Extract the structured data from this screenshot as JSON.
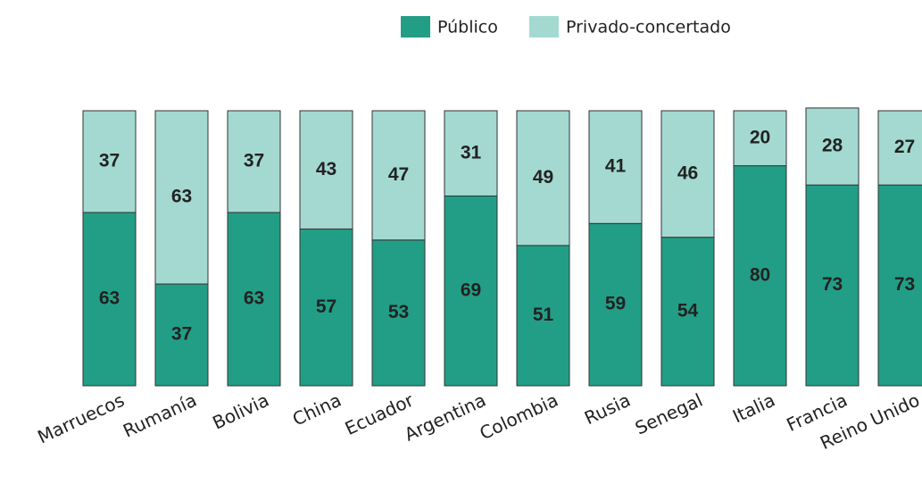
{
  "chart_data": {
    "type": "stacked_bar",
    "categories": [
      "Marruecos",
      "Rumanía",
      "Bolivia",
      "China",
      "Ecuador",
      "Argentina",
      "Colombia",
      "Rusia",
      "Senegal",
      "Italia",
      "Francia",
      "Reino Unido"
    ],
    "series": [
      {
        "name": "Público",
        "color": "#229e86",
        "values": [
          63,
          37,
          63,
          57,
          53,
          69,
          51,
          59,
          54,
          80,
          73,
          73
        ]
      },
      {
        "name": "Privado-concertado",
        "color": "#a3d9d0",
        "values": [
          37,
          63,
          37,
          43,
          47,
          31,
          49,
          41,
          46,
          20,
          28,
          27
        ]
      }
    ],
    "ylim": [
      0,
      100
    ]
  }
}
